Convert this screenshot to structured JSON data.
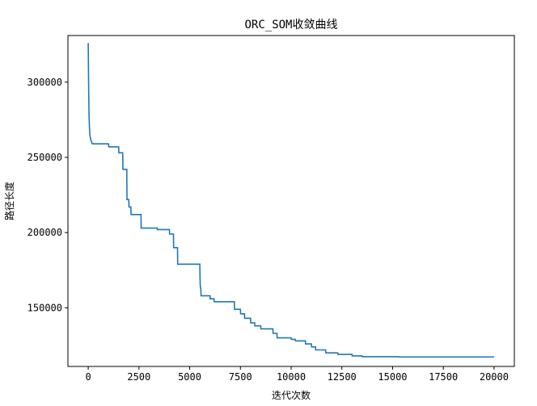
{
  "chart_data": {
    "type": "line",
    "title": "ORC_SOM收敛曲线",
    "xlabel": "迭代次数",
    "ylabel": "路径长度",
    "xlim": [
      -1000,
      21000
    ],
    "ylim": [
      111000,
      331000
    ],
    "xticks": [
      0,
      2500,
      5000,
      7500,
      10000,
      12500,
      15000,
      17500,
      20000
    ],
    "xtick_labels": [
      "0",
      "2500",
      "5000",
      "7500",
      "10000",
      "12500",
      "15000",
      "17500",
      "20000"
    ],
    "yticks": [
      150000,
      200000,
      250000,
      300000
    ],
    "ytick_labels": [
      "150000",
      "200000",
      "250000",
      "300000"
    ],
    "grid": false,
    "series": [
      {
        "color": "#1f77b4",
        "x": [
          0,
          20,
          40,
          60,
          80,
          120,
          200,
          1000,
          1010,
          1500,
          1510,
          1700,
          1710,
          1900,
          1910,
          2000,
          2010,
          2100,
          2110,
          2600,
          2610,
          3400,
          3410,
          4000,
          4010,
          4200,
          4210,
          4400,
          4410,
          5500,
          5510,
          5520,
          5550,
          5560,
          6000,
          6010,
          6200,
          6210,
          7200,
          7210,
          7500,
          7510,
          7700,
          7710,
          8000,
          8010,
          8200,
          8210,
          8500,
          8510,
          9100,
          9110,
          9300,
          9310,
          10000,
          10010,
          10200,
          10210,
          10700,
          10710,
          11000,
          11010,
          11200,
          11210,
          11700,
          11710,
          12300,
          12310,
          13000,
          13010,
          13500,
          13510,
          15300,
          15310,
          20000
        ],
        "y": [
          326000,
          298000,
          278000,
          270000,
          265000,
          262000,
          259000,
          259000,
          257000,
          257000,
          253000,
          253000,
          242000,
          242000,
          222000,
          222000,
          217000,
          217000,
          212000,
          212000,
          203000,
          203000,
          202000,
          202000,
          199000,
          199000,
          190000,
          190000,
          179000,
          179000,
          170000,
          165000,
          162000,
          158000,
          158000,
          156000,
          156000,
          154000,
          154000,
          149000,
          149000,
          146000,
          146000,
          143000,
          143000,
          140000,
          140000,
          138000,
          138000,
          136000,
          136000,
          133000,
          133000,
          130000,
          130000,
          129000,
          129000,
          128000,
          128000,
          126000,
          126000,
          124000,
          124000,
          122000,
          122000,
          120000,
          120000,
          119000,
          119000,
          118000,
          118000,
          117500,
          117500,
          117300,
          117300
        ]
      }
    ]
  }
}
